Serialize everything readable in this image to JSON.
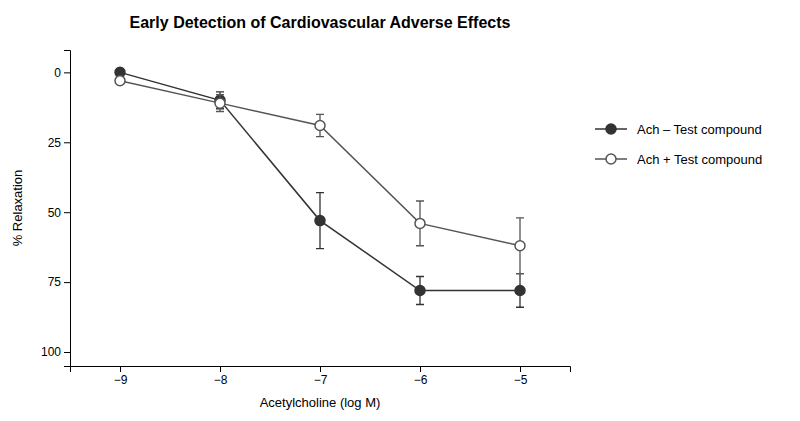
{
  "chart_data": {
    "type": "line",
    "title": "Early Detection of Cardiovascular Adverse Effects",
    "xlabel": "Acetylcholine (log M)",
    "ylabel": "% Relaxation",
    "x": [
      -9,
      -8,
      -7,
      -6,
      -5
    ],
    "series": [
      {
        "name": "Ach – Test compound",
        "color": "#333333",
        "marker": "circle",
        "values": [
          0,
          10,
          53,
          78,
          78
        ],
        "errors": [
          1,
          3,
          10,
          5,
          6
        ]
      },
      {
        "name": "Ach + Test compound",
        "color": "#555555",
        "marker": "circle-open",
        "values": [
          3,
          11,
          19,
          54,
          62
        ],
        "errors": [
          1,
          3,
          4,
          8,
          10
        ]
      }
    ],
    "xlim": [
      -9.5,
      -4.5
    ],
    "xticks": [
      {
        "value": -9,
        "label": "−9"
      },
      {
        "value": -8,
        "label": "−8"
      },
      {
        "value": -7,
        "label": "−7"
      },
      {
        "value": -6,
        "label": "−6"
      },
      {
        "value": -5,
        "label": "−5"
      }
    ],
    "ylim": [
      105,
      -8
    ],
    "yticks": [
      0,
      25,
      50,
      75,
      100
    ],
    "grid": false,
    "legend": "right"
  }
}
